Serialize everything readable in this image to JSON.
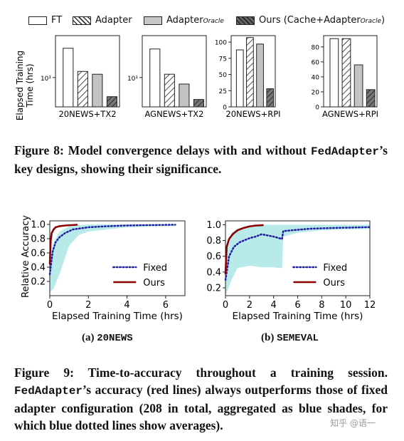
{
  "figure8": {
    "legend": {
      "ft": "FT",
      "adapter": "Adapter",
      "oracle_main": "Adapter",
      "oracle_sub": "Oracle",
      "ours_main": "Ours (Cache+Adapter",
      "ours_sub": "Oracle",
      "ours_close": ")"
    },
    "ylabel": "Elapsed Training\nTime (hrs)",
    "caption_prefix": "Figure 8: Model convergence delays with and without ",
    "caption_mono": "FedAdapter",
    "caption_suffix": "’s key designs, showing their significance."
  },
  "figure9": {
    "ylabel": "Relative Accuracy",
    "xlabel": "Elapsed Training Time (hrs)",
    "legend_fixed": "Fixed",
    "legend_ours": "Ours",
    "sub_a_prefix": "(a) ",
    "sub_a_mono": "20NEWS",
    "sub_b_prefix": "(b) ",
    "sub_b_mono": "SEMEVAL",
    "caption_line1": "Figure 9: Time-to-accuracy throughout a training session.",
    "caption_mono": "FedAdapter",
    "caption_rest": "’s accuracy (red lines) always outperforms those of fixed adapter configuration (208 in total, aggregated as blue shades, for which blue dotted lines show averages)."
  },
  "watermark": "知乎 @语一",
  "colors": {
    "fixed": "#1f1fa0",
    "ours": "#8b0000",
    "shade": "#7fd8d8"
  },
  "chart_data": [
    {
      "type": "bar",
      "xlabel": "20NEWS+TX2",
      "yscale": "log",
      "ytick_labels": [
        "10¹"
      ],
      "series_names": [
        "FT",
        "Adapter",
        "Adapter_Oracle",
        "Ours (Cache+Adapter_Oracle)"
      ],
      "values": [
        50,
        14,
        12,
        3.5
      ],
      "ylim": [
        2,
        100
      ]
    },
    {
      "type": "bar",
      "xlabel": "AGNEWS+TX2",
      "yscale": "log",
      "ytick_labels": [
        "10¹"
      ],
      "series_names": [
        "FT",
        "Adapter",
        "Adapter_Oracle",
        "Ours (Cache+Adapter_Oracle)"
      ],
      "values": [
        48,
        12,
        7,
        3
      ],
      "ylim": [
        2,
        100
      ]
    },
    {
      "type": "bar",
      "xlabel": "20NEWS+RPI",
      "ytick_labels": [
        "0",
        "25",
        "50",
        "75",
        "100"
      ],
      "series_names": [
        "FT",
        "Adapter",
        "Adapter_Oracle",
        "Ours (Cache+Adapter_Oracle)"
      ],
      "values": [
        88,
        107,
        97,
        28
      ],
      "ylim": [
        0,
        110
      ]
    },
    {
      "type": "bar",
      "xlabel": "AGNEWS+RPI",
      "ytick_labels": [
        "0",
        "20",
        "40",
        "60",
        "80"
      ],
      "series_names": [
        "FT",
        "Adapter",
        "Adapter_Oracle",
        "Ours (Cache+Adapter_Oracle)"
      ],
      "values": [
        91,
        91,
        56,
        23
      ],
      "ylim": [
        0,
        95
      ]
    },
    {
      "type": "line",
      "panel": "20NEWS",
      "xlabel": "Elapsed Training Time (hrs)",
      "ylabel": "Relative Accuracy",
      "xlim": [
        0,
        7
      ],
      "ylim": [
        0,
        1.05
      ],
      "xticks": [
        "0",
        "2",
        "4",
        "6"
      ],
      "yticks": [
        "0.2",
        "0.4",
        "0.6",
        "0.8",
        "1.0"
      ],
      "series": [
        {
          "name": "Fixed",
          "style": "dotted",
          "x": [
            0,
            0.15,
            0.3,
            0.5,
            0.8,
            1.2,
            2,
            3,
            4,
            5,
            6.5
          ],
          "y": [
            0.3,
            0.62,
            0.75,
            0.82,
            0.88,
            0.93,
            0.96,
            0.975,
            0.985,
            0.99,
            0.995
          ]
        },
        {
          "name": "Ours",
          "style": "solid",
          "x": [
            0,
            0.05,
            0.1,
            0.2,
            0.3,
            0.5,
            0.8,
            1.1,
            1.4
          ],
          "y": [
            0.45,
            0.78,
            0.88,
            0.93,
            0.96,
            0.975,
            0.985,
            0.99,
            0.995
          ]
        }
      ],
      "shade": {
        "x": [
          0,
          0.2,
          0.5,
          1,
          1.5,
          2,
          3,
          4,
          6.5
        ],
        "low": [
          0.05,
          0.1,
          0.3,
          0.7,
          0.85,
          0.9,
          0.93,
          0.96,
          0.98
        ],
        "high": [
          0.5,
          0.75,
          0.9,
          0.97,
          0.99,
          1.0,
          1.0,
          1.0,
          1.0
        ]
      }
    },
    {
      "type": "line",
      "panel": "SEMEVAL",
      "xlabel": "Elapsed Training Time (hrs)",
      "ylabel": "Relative Accuracy",
      "xlim": [
        0,
        12
      ],
      "ylim": [
        0.1,
        1.05
      ],
      "xticks": [
        "0",
        "2",
        "4",
        "6",
        "8",
        "10",
        "12"
      ],
      "yticks": [
        "0.2",
        "0.4",
        "0.6",
        "0.8",
        "1.0"
      ],
      "series": [
        {
          "name": "Fixed",
          "style": "dotted",
          "x": [
            0,
            0.3,
            0.7,
            1.2,
            2,
            2.5,
            3,
            4,
            4.7,
            4.8,
            5.5,
            7,
            9,
            12
          ],
          "y": [
            0.3,
            0.6,
            0.72,
            0.78,
            0.83,
            0.85,
            0.88,
            0.85,
            0.82,
            0.92,
            0.93,
            0.95,
            0.96,
            0.97
          ]
        },
        {
          "name": "Ours",
          "style": "solid",
          "x": [
            0,
            0.1,
            0.3,
            0.6,
            1,
            1.5,
            2,
            2.5,
            3.1
          ],
          "y": [
            0.38,
            0.72,
            0.82,
            0.88,
            0.93,
            0.96,
            0.98,
            0.99,
            0.995
          ]
        }
      ],
      "shade": {
        "x": [
          0,
          0.5,
          1,
          2,
          3,
          4,
          4.7,
          4.8,
          6,
          8,
          12
        ],
        "low": [
          0.1,
          0.3,
          0.45,
          0.48,
          0.46,
          0.46,
          0.45,
          0.85,
          0.9,
          0.93,
          0.95
        ],
        "high": [
          0.6,
          0.9,
          0.95,
          0.99,
          1.0,
          1.0,
          1.0,
          1.0,
          1.0,
          1.0,
          1.0
        ]
      }
    }
  ]
}
